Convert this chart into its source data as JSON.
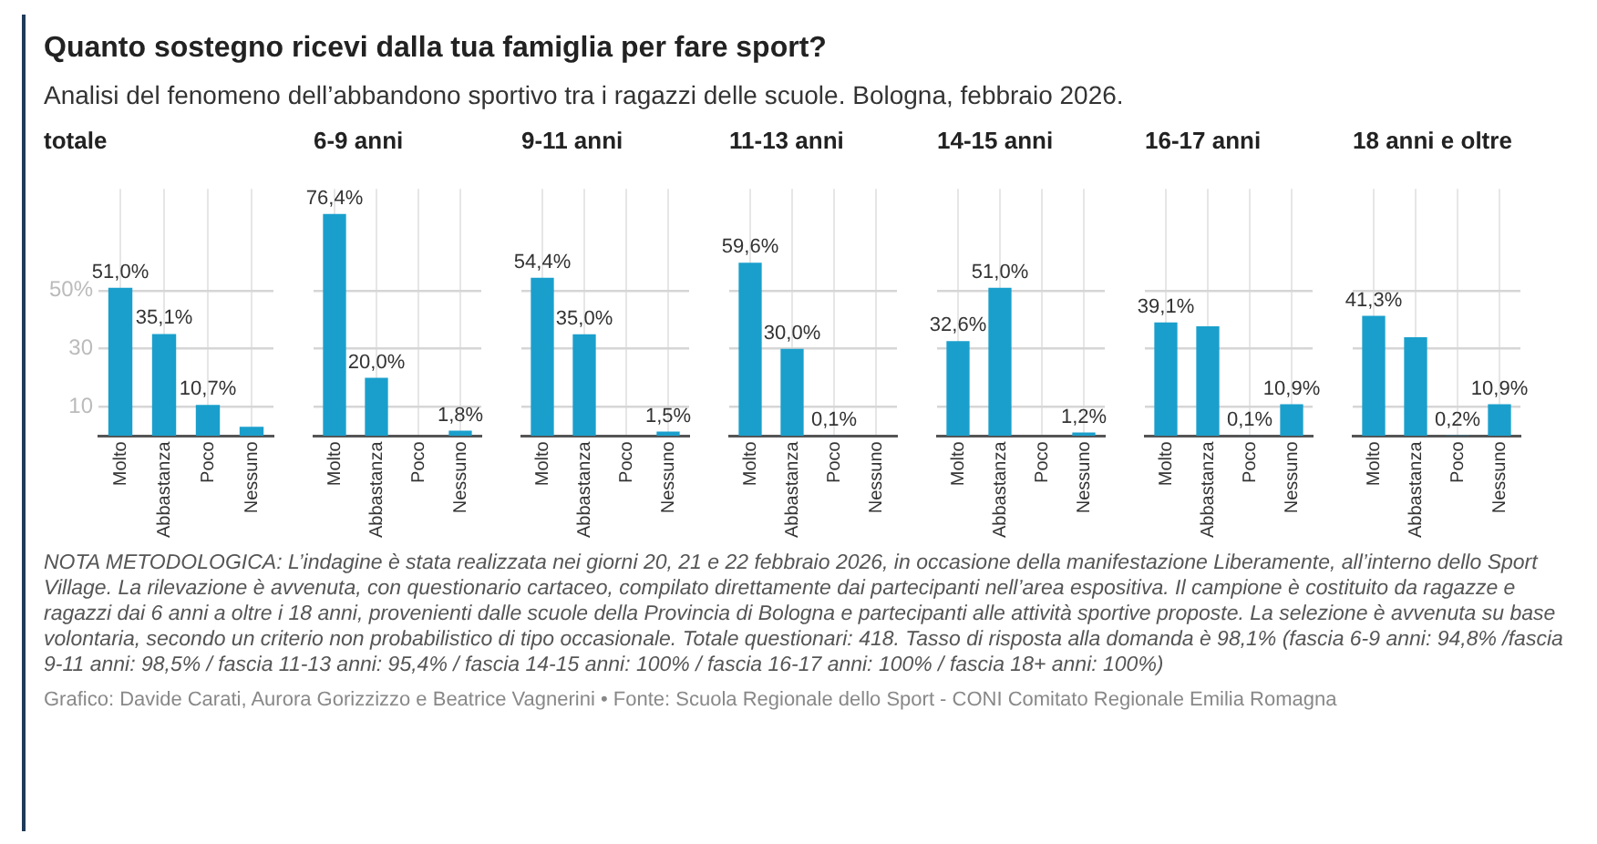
{
  "chart_data": [
    {
      "type": "other",
      "title": "Quanto sostegno ricevi dalla tua famiglia per fare sport?",
      "subtitle": "Analisi del fenomeno dell’abbandono sportivo tra i ragazzi delle scuole. Bologna, febbraio 2026."
    },
    {
      "type": "bar",
      "title": "totale",
      "categories": [
        "Molto",
        "Abbastanza",
        "Poco",
        "Nessuno"
      ],
      "values": [
        51.0,
        35.1,
        10.7,
        3.2
      ],
      "value_labels": [
        "51,0%",
        "35,1%",
        "10,7%",
        null
      ],
      "color": "#1a9fcc",
      "ylim": [
        0,
        85
      ],
      "yticks": [
        10,
        30,
        {
          "value": 50,
          "label": "50%"
        }
      ],
      "grid": true
    },
    {
      "type": "bar",
      "title": "6-9 anni",
      "categories": [
        "Molto",
        "Abbastanza",
        "Poco",
        "Nessuno"
      ],
      "values": [
        76.4,
        20.0,
        null,
        1.8
      ],
      "value_labels": [
        "76,4%",
        "20,0%",
        null,
        "1,8%"
      ],
      "color": "#1a9fcc",
      "ylim": [
        0,
        85
      ],
      "yticks": [
        10,
        30,
        50
      ],
      "grid": true,
      "tick_labels": "x"
    },
    {
      "type": "bar",
      "title": "9-11 anni",
      "categories": [
        "Molto",
        "Abbastanza",
        "Poco",
        "Nessuno"
      ],
      "values": [
        54.4,
        35.0,
        null,
        1.5
      ],
      "value_labels": [
        "54,4%",
        "35,0%",
        null,
        "1,5%"
      ],
      "color": "#1a9fcc",
      "ylim": [
        0,
        85
      ],
      "yticks": [
        10,
        30,
        50
      ],
      "grid": true,
      "tick_labels": "x"
    },
    {
      "type": "bar",
      "title": "11-13 anni",
      "categories": [
        "Molto",
        "Abbastanza",
        "Poco",
        "Nessuno"
      ],
      "values": [
        59.6,
        30.0,
        0.1,
        null
      ],
      "value_labels": [
        "59,6%",
        "30,0%",
        "0,1%",
        null
      ],
      "color": "#1a9fcc",
      "ylim": [
        0,
        85
      ],
      "yticks": [
        10,
        30,
        50
      ],
      "grid": true,
      "tick_labels": "x"
    },
    {
      "type": "bar",
      "title": "14-15 anni",
      "categories": [
        "Molto",
        "Abbastanza",
        "Poco",
        "Nessuno"
      ],
      "values": [
        32.6,
        51.0,
        null,
        1.2
      ],
      "value_labels": [
        "32,6%",
        "51,0%",
        null,
        "1,2%"
      ],
      "color": "#1a9fcc",
      "ylim": [
        0,
        85
      ],
      "yticks": [
        10,
        30,
        50
      ],
      "grid": true,
      "tick_labels": "x"
    },
    {
      "type": "bar",
      "title": "16-17 anni",
      "categories": [
        "Molto",
        "Abbastanza",
        "Poco",
        "Nessuno"
      ],
      "values": [
        39.1,
        37.7,
        0.1,
        10.9
      ],
      "value_labels": [
        "39,1%",
        null,
        "0,1%",
        "10,9%"
      ],
      "color": "#1a9fcc",
      "ylim": [
        0,
        85
      ],
      "yticks": [
        10,
        30,
        50
      ],
      "grid": true,
      "tick_labels": "x"
    },
    {
      "type": "bar",
      "title": "18 anni e oltre",
      "categories": [
        "Molto",
        "Abbastanza",
        "Poco",
        "Nessuno"
      ],
      "values": [
        41.3,
        34.0,
        0.2,
        10.9
      ],
      "value_labels": [
        "41,3%",
        null,
        "0,2%",
        "10,9%"
      ],
      "color": "#1a9fcc",
      "ylim": [
        0,
        85
      ],
      "yticks": [
        10,
        30,
        50
      ],
      "grid": true,
      "tick_labels": "x"
    },
    {
      "type": "other",
      "annotations": [
        "NOTA METODOLOGICA: L’indagine è stata realizzata nei giorni 20, 21 e 22 febbraio 2026, in occasione della manifestazione Liberamente, all’interno dello Sport Village. La rilevazione è avvenuta, con questionario cartaceo, compilato direttamente dai partecipanti nell’area espositiva. Il campione è costituito da ragazze e ragazzi dai 6 anni a oltre i 18 anni, provenienti dalle scuole della Provincia di Bologna e partecipanti alle attività sportive proposte. La selezione è avvenuta su base volontaria, secondo un criterio non probabilistico di tipo occasionale. Totale questionari: 418. Tasso di risposta alla domanda è 98,1% (fascia 6-9 anni: 94,8% /fascia 9-11 anni: 98,5% / fascia 11-13 anni: 95,4% / fascia 14-15 anni: 100% / fascia 16-17 anni: 100% / fascia 18+ anni: 100%)",
        "Grafico: Davide Carati, Aurora Gorizzizzo e Beatrice Vagnerini • Fonte: Scuola Regionale dello Sport - CONI Comitato Regionale Emilia Romagna"
      ]
    }
  ]
}
